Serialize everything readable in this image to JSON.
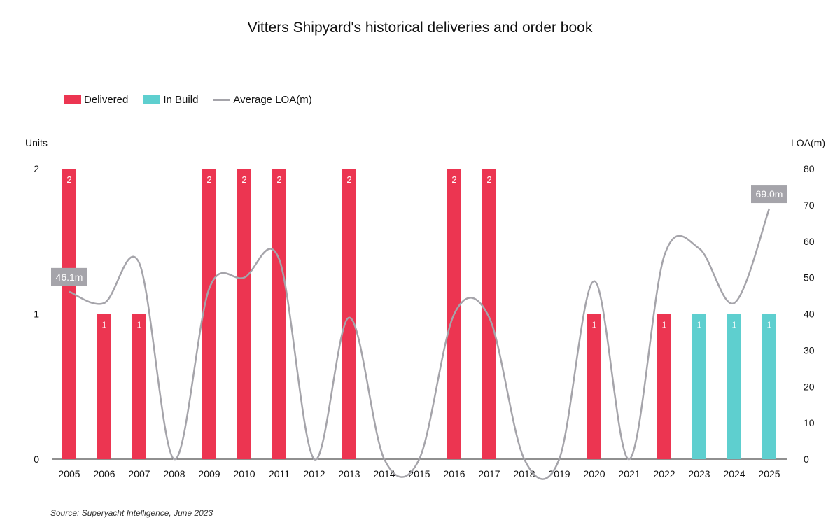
{
  "title": "Vitters Shipyard's historical deliveries and order book",
  "source": "Source: Superyacht Intelligence, June 2023",
  "colors": {
    "delivered": "#ec3551",
    "in_build": "#5ecfcf",
    "line": "#a5a4aa",
    "callout": "#a5a4aa"
  },
  "chart_data": {
    "type": "bar",
    "categories": [
      "2005",
      "2006",
      "2007",
      "2008",
      "2009",
      "2010",
      "2011",
      "2012",
      "2013",
      "2014",
      "2015",
      "2016",
      "2017",
      "2018",
      "2019",
      "2020",
      "2021",
      "2022",
      "2023",
      "2024",
      "2025"
    ],
    "series": [
      {
        "name": "Delivered",
        "axis": "left",
        "type": "bar",
        "values": [
          2,
          1,
          1,
          0,
          2,
          2,
          2,
          0,
          2,
          0,
          0,
          2,
          2,
          0,
          0,
          1,
          0,
          1,
          0,
          0,
          0
        ]
      },
      {
        "name": "In Build",
        "axis": "left",
        "type": "bar",
        "values": [
          0,
          0,
          0,
          0,
          0,
          0,
          0,
          0,
          0,
          0,
          0,
          0,
          0,
          0,
          0,
          0,
          0,
          0,
          1,
          1,
          1
        ]
      },
      {
        "name": "Average LOA(m)",
        "axis": "right",
        "type": "line",
        "values": [
          46.1,
          43,
          54,
          0,
          47,
          50,
          55,
          0,
          39,
          0,
          0,
          40,
          39,
          0,
          0,
          49,
          0,
          56,
          58,
          43,
          69
        ]
      }
    ],
    "ylabel": "Units",
    "ylabel_right": "LOA(m)",
    "ylim": [
      0,
      2
    ],
    "ylim_right": [
      0,
      80
    ],
    "yticks": [
      "0",
      "1",
      "2"
    ],
    "yticks_right": [
      "0",
      "10",
      "20",
      "30",
      "40",
      "50",
      "60",
      "70",
      "80"
    ],
    "annotations": [
      {
        "label": "46.1m",
        "category": "2005"
      },
      {
        "label": "69.0m",
        "category": "2025"
      }
    ],
    "legend": "top-left",
    "grid": false
  }
}
